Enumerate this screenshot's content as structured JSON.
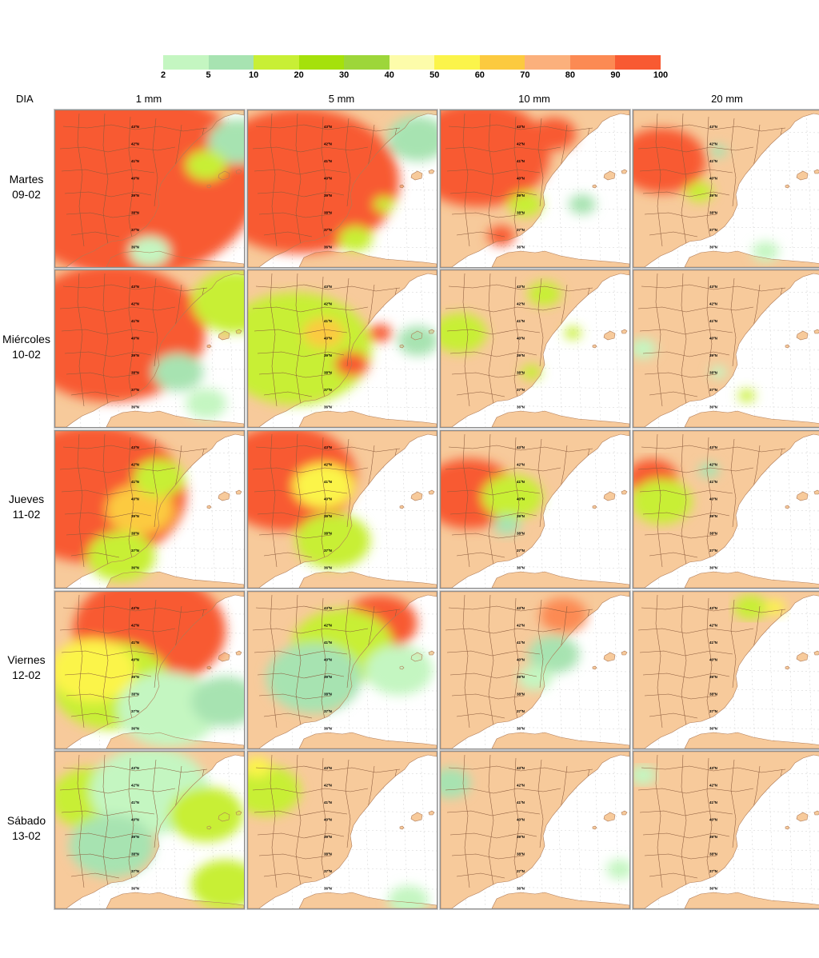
{
  "legend": {
    "ticks": [
      "2",
      "5",
      "10",
      "20",
      "30",
      "40",
      "50",
      "60",
      "70",
      "80",
      "90",
      "100"
    ],
    "colors": [
      "#c4f6c1",
      "#a7e3b1",
      "#c8ef35",
      "#a5e10b",
      "#9dd63a",
      "#fdfcaa",
      "#fbf44a",
      "#fcca3f",
      "#fbb07c",
      "#fc8a53",
      "#f85a32"
    ]
  },
  "header": {
    "day_label": "DIA"
  },
  "columns": [
    "1 mm",
    "5 mm",
    "10 mm",
    "20 mm"
  ],
  "rows": [
    {
      "day": "Martes",
      "date": "09-02"
    },
    {
      "day": "Miércoles",
      "date": "10-02"
    },
    {
      "day": "Jueves",
      "date": "11-02"
    },
    {
      "day": "Viernes",
      "date": "12-02"
    },
    {
      "day": "Sábado",
      "date": "13-02"
    }
  ],
  "map": {
    "land_color": "#f7ca9b",
    "sea_color": "#ffffff",
    "border_color": "#8b5a3c",
    "lat_labels": [
      "43ºN",
      "42ºN",
      "41ºN",
      "40ºN",
      "39ºN",
      "38ºN",
      "37ºN",
      "36ºN"
    ],
    "blobs": [
      [
        [
          0.4,
          0.47,
          0.75,
          "#f85a32"
        ],
        [
          0.0,
          0.3,
          0.55,
          "#f85a32"
        ],
        [
          0.97,
          0.2,
          0.18,
          "#a7e3b1"
        ],
        [
          0.8,
          0.35,
          0.12,
          "#c8ef35"
        ],
        [
          0.5,
          0.9,
          0.12,
          "#c4f6c1"
        ]
      ],
      [
        [
          0.28,
          0.45,
          0.58,
          "#f85a32"
        ],
        [
          0.9,
          0.18,
          0.18,
          "#a7e3b1"
        ],
        [
          0.57,
          0.82,
          0.1,
          "#c8ef35"
        ],
        [
          0.72,
          0.6,
          0.06,
          "#c8ef35"
        ]
      ],
      [
        [
          0.2,
          0.28,
          0.42,
          "#f85a32"
        ],
        [
          0.6,
          0.15,
          0.13,
          "#f85a32"
        ],
        [
          0.45,
          0.6,
          0.1,
          "#c8ef35"
        ],
        [
          0.32,
          0.8,
          0.08,
          "#f85a32"
        ],
        [
          0.75,
          0.6,
          0.08,
          "#a7e3b1"
        ]
      ],
      [
        [
          0.15,
          0.32,
          0.26,
          "#f85a32"
        ],
        [
          0.35,
          0.52,
          0.08,
          "#c8ef35"
        ],
        [
          0.45,
          0.26,
          0.05,
          "#a7e3b1"
        ],
        [
          0.7,
          0.9,
          0.08,
          "#c4f6c1"
        ]
      ],
      [
        [
          0.3,
          0.4,
          0.55,
          "#f85a32"
        ],
        [
          0.95,
          0.2,
          0.25,
          "#c8ef35"
        ],
        [
          0.65,
          0.65,
          0.15,
          "#a7e3b1"
        ],
        [
          0.8,
          0.85,
          0.12,
          "#c4f6c1"
        ]
      ],
      [
        [
          0.25,
          0.5,
          0.45,
          "#c8ef35"
        ],
        [
          0.4,
          0.4,
          0.12,
          "#fcca3f"
        ],
        [
          0.55,
          0.6,
          0.1,
          "#f85a32"
        ],
        [
          0.7,
          0.4,
          0.07,
          "#f85a32"
        ],
        [
          0.9,
          0.45,
          0.12,
          "#a7e3b1"
        ]
      ],
      [
        [
          0.1,
          0.4,
          0.16,
          "#c8ef35"
        ],
        [
          0.55,
          0.15,
          0.1,
          "#c8ef35"
        ],
        [
          0.48,
          0.65,
          0.06,
          "#c8ef35"
        ],
        [
          0.7,
          0.4,
          0.05,
          "#c8ef35"
        ]
      ],
      [
        [
          0.05,
          0.5,
          0.08,
          "#c4f6c1"
        ],
        [
          0.45,
          0.65,
          0.05,
          "#c4f6c1"
        ],
        [
          0.6,
          0.8,
          0.05,
          "#c8ef35"
        ]
      ],
      [
        [
          0.2,
          0.4,
          0.55,
          "#f85a32"
        ],
        [
          0.45,
          0.5,
          0.2,
          "#fcca3f"
        ],
        [
          0.55,
          0.3,
          0.15,
          "#c8ef35"
        ],
        [
          0.35,
          0.8,
          0.2,
          "#c8ef35"
        ]
      ],
      [
        [
          0.2,
          0.3,
          0.42,
          "#f85a32"
        ],
        [
          0.4,
          0.35,
          0.18,
          "#fbf44a"
        ],
        [
          0.45,
          0.7,
          0.22,
          "#c8ef35"
        ]
      ],
      [
        [
          0.15,
          0.4,
          0.28,
          "#f85a32"
        ],
        [
          0.38,
          0.42,
          0.18,
          "#c8ef35"
        ],
        [
          0.35,
          0.6,
          0.08,
          "#a7e3b1"
        ]
      ],
      [
        [
          0.1,
          0.3,
          0.15,
          "#f85a32"
        ],
        [
          0.15,
          0.45,
          0.18,
          "#c8ef35"
        ],
        [
          0.4,
          0.25,
          0.06,
          "#a7e3b1"
        ]
      ],
      [
        [
          0.5,
          0.25,
          0.45,
          "#f85a32"
        ],
        [
          0.3,
          0.6,
          0.35,
          "#c8ef35"
        ],
        [
          0.2,
          0.5,
          0.25,
          "#fbf44a"
        ],
        [
          0.6,
          0.75,
          0.3,
          "#c4f6c1"
        ],
        [
          0.9,
          0.7,
          0.2,
          "#a7e3b1"
        ]
      ],
      [
        [
          0.7,
          0.2,
          0.22,
          "#f85a32"
        ],
        [
          0.5,
          0.35,
          0.3,
          "#c8ef35"
        ],
        [
          0.35,
          0.55,
          0.28,
          "#a7e3b1"
        ],
        [
          0.8,
          0.5,
          0.2,
          "#c4f6c1"
        ]
      ],
      [
        [
          0.65,
          0.15,
          0.14,
          "#fc8a53"
        ],
        [
          0.6,
          0.4,
          0.15,
          "#a7e3b1"
        ],
        [
          0.5,
          0.55,
          0.1,
          "#c4f6c1"
        ]
      ],
      [
        [
          0.62,
          0.1,
          0.1,
          "#c8ef35"
        ],
        [
          0.75,
          0.1,
          0.06,
          "#fbf44a"
        ]
      ],
      [
        [
          0.2,
          0.3,
          0.25,
          "#c8ef35"
        ],
        [
          0.5,
          0.25,
          0.35,
          "#c4f6c1"
        ],
        [
          0.8,
          0.4,
          0.22,
          "#c8ef35"
        ],
        [
          0.9,
          0.85,
          0.2,
          "#c8ef35"
        ],
        [
          0.3,
          0.6,
          0.25,
          "#a7e3b1"
        ]
      ],
      [
        [
          0.1,
          0.25,
          0.2,
          "#c8ef35"
        ],
        [
          0.05,
          0.1,
          0.08,
          "#fbf44a"
        ],
        [
          0.85,
          0.95,
          0.12,
          "#c4f6c1"
        ]
      ],
      [
        [
          0.05,
          0.2,
          0.12,
          "#a7e3b1"
        ],
        [
          0.95,
          0.75,
          0.08,
          "#c4f6c1"
        ]
      ],
      [
        [
          0.05,
          0.15,
          0.08,
          "#c4f6c1"
        ]
      ]
    ]
  }
}
